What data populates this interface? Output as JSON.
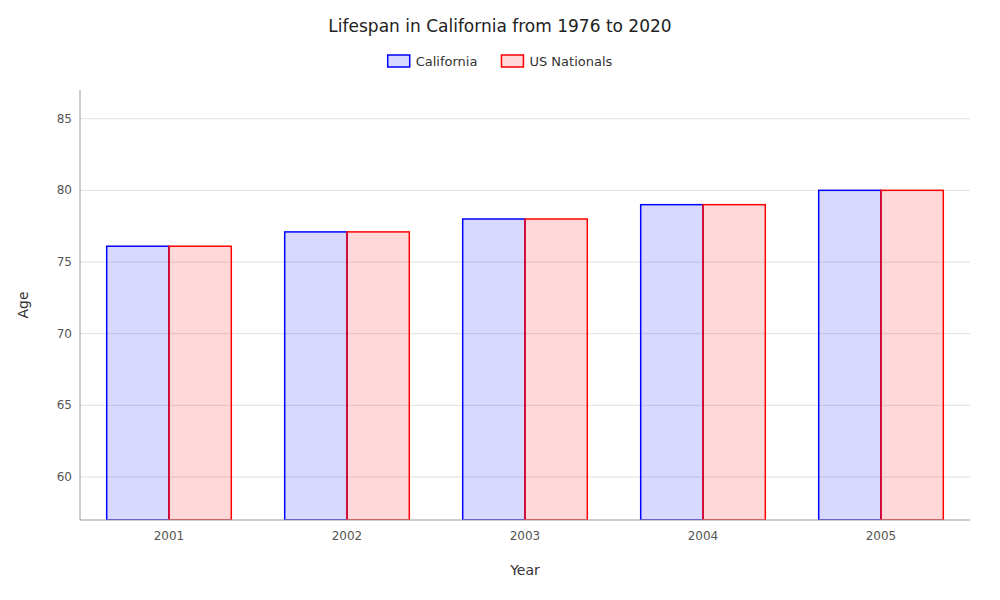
{
  "chart_data": {
    "type": "bar",
    "title": "Lifespan in California from 1976 to 2020",
    "xlabel": "Year",
    "ylabel": "Age",
    "categories": [
      "2001",
      "2002",
      "2003",
      "2004",
      "2005"
    ],
    "series": [
      {
        "name": "California",
        "color": "#0000ff",
        "values": [
          76.1,
          77.1,
          78.0,
          79.0,
          80.0
        ]
      },
      {
        "name": "US Nationals",
        "color": "#ff0000",
        "values": [
          76.1,
          77.1,
          78.0,
          79.0,
          80.0
        ]
      }
    ],
    "ylim": [
      57,
      87
    ],
    "yticks": [
      60,
      65,
      70,
      75,
      80,
      85
    ],
    "grid": true,
    "legend": "top"
  }
}
